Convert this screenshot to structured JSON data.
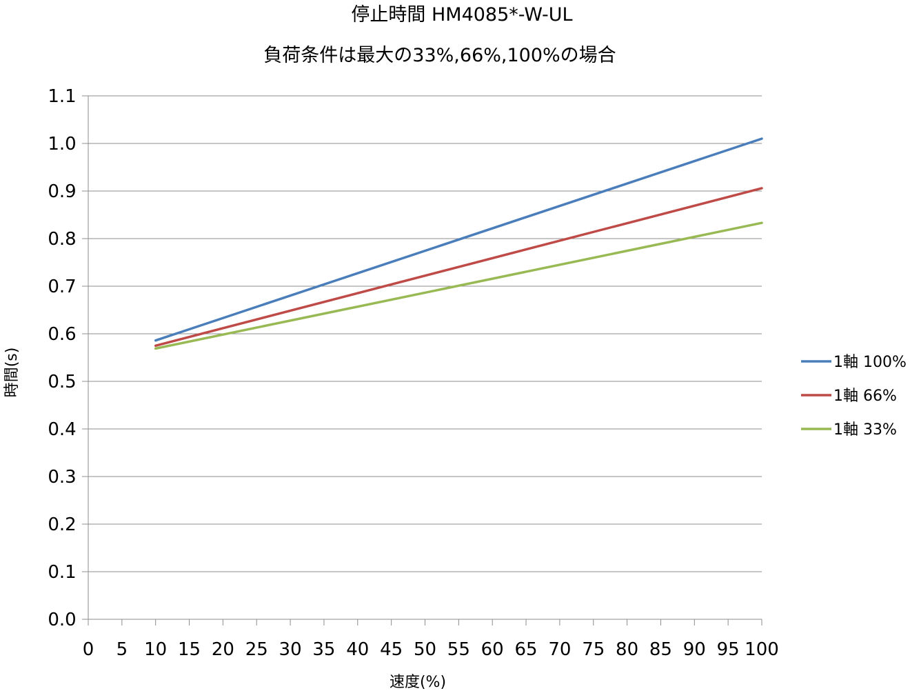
{
  "chart_data": {
    "type": "line",
    "title": "停止時間 HM4085*-W-UL",
    "subtitle": "負荷条件は最大の33%,66%,100%の場合",
    "xlabel": "速度(%)",
    "ylabel": "時間(s)",
    "xlim": [
      0,
      100
    ],
    "ylim": [
      0,
      1.1
    ],
    "x_ticks": [
      "0",
      "5",
      "10",
      "15",
      "20",
      "25",
      "30",
      "35",
      "40",
      "45",
      "50",
      "55",
      "60",
      "65",
      "70",
      "75",
      "80",
      "85",
      "90",
      "95",
      "100"
    ],
    "y_ticks": [
      "0.0",
      "0.1",
      "0.2",
      "0.3",
      "0.4",
      "0.5",
      "0.6",
      "0.7",
      "0.8",
      "0.9",
      "1.0",
      "1.1"
    ],
    "grid": "horizontal",
    "legend_position": "right",
    "series": [
      {
        "name": "1軸 100%",
        "color": "#4a7ebb",
        "x": [
          10,
          100
        ],
        "y": [
          0.586,
          1.01
        ]
      },
      {
        "name": "1軸 66%",
        "color": "#be4b48",
        "x": [
          10,
          100
        ],
        "y": [
          0.575,
          0.906
        ]
      },
      {
        "name": "1軸 33%",
        "color": "#98b954",
        "x": [
          10,
          100
        ],
        "y": [
          0.569,
          0.833
        ]
      }
    ]
  }
}
